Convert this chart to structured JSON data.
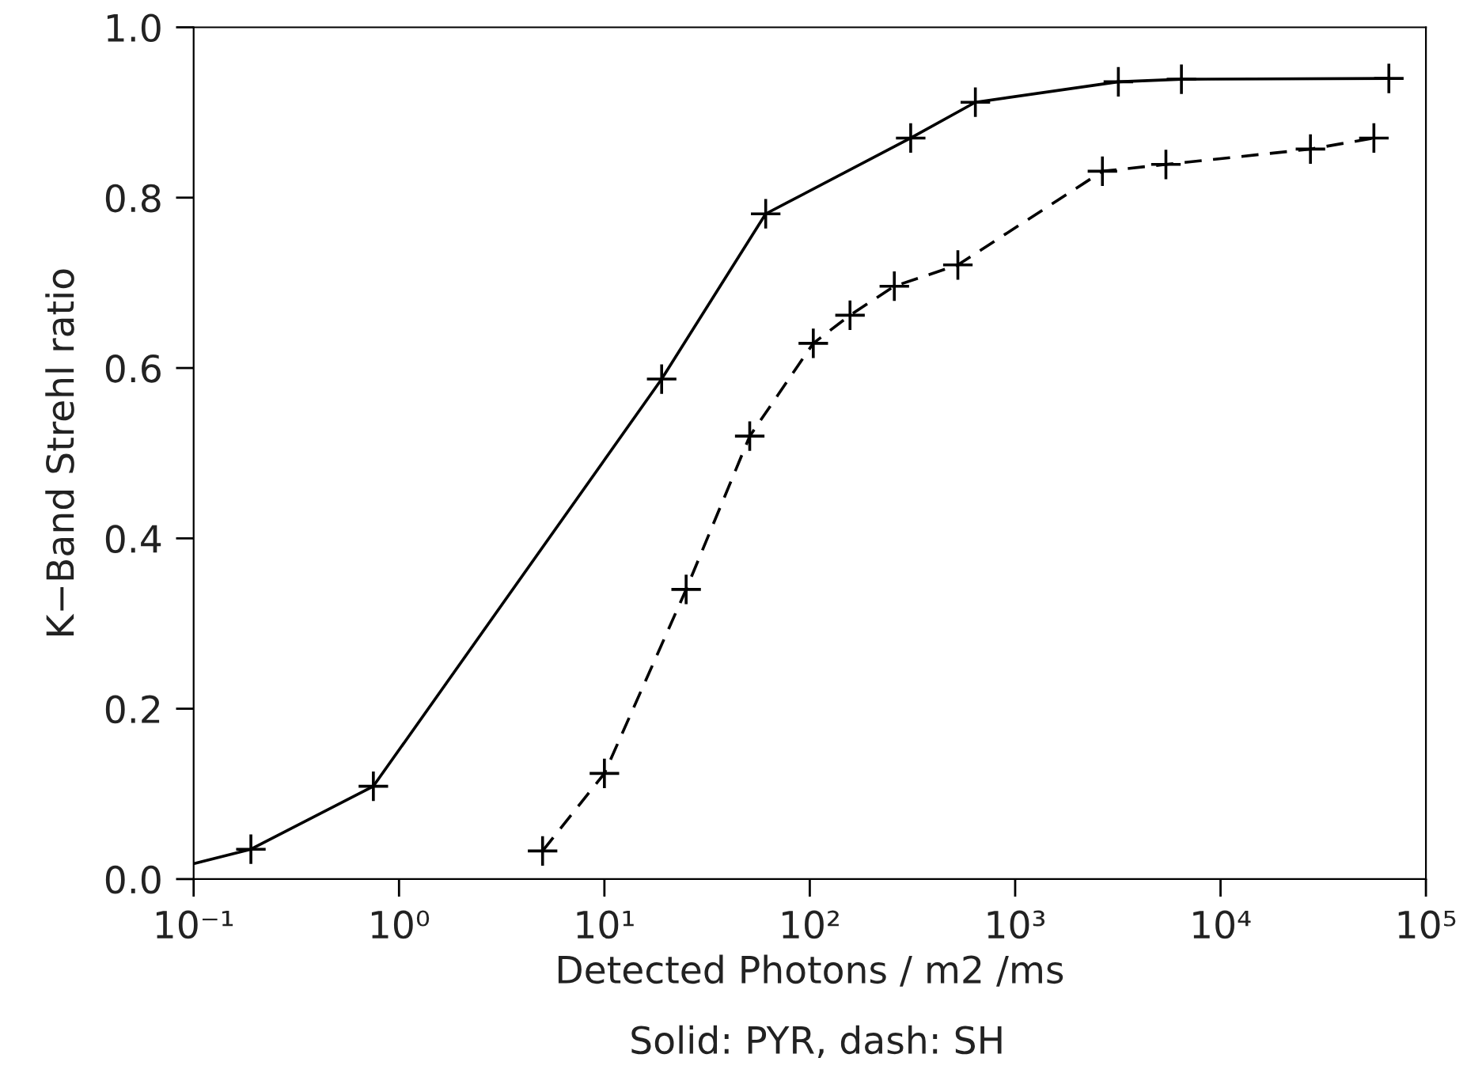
{
  "chart_data": {
    "type": "line",
    "xlabel": "Detected Photons / m2 /ms",
    "ylabel": "K−Band Strehl ratio",
    "annotations": [
      "Solid: PYR, dash: SH"
    ],
    "log": "x",
    "xlim": [
      0.1,
      100000
    ],
    "ylim": [
      0,
      1
    ],
    "xticks": [
      {
        "value": 0.1,
        "label": "10⁻¹"
      },
      {
        "value": 1,
        "label": "10⁰"
      },
      {
        "value": 10,
        "label": "10¹"
      },
      {
        "value": 100,
        "label": "10²"
      },
      {
        "value": 1000,
        "label": "10³"
      },
      {
        "value": 10000,
        "label": "10⁴"
      },
      {
        "value": 100000,
        "label": "10⁵"
      }
    ],
    "yticks": [
      {
        "value": 0,
        "label": "0.0"
      },
      0.2,
      0.4,
      0.6,
      0.8,
      {
        "value": 1,
        "label": "1.0"
      }
    ],
    "grid": false,
    "legend": false,
    "series": [
      {
        "color": "#000000",
        "line_style": "solid",
        "marker": "cross",
        "x": [
          0.1,
          0.19,
          0.75,
          19,
          61,
          310,
          640,
          3180,
          6450,
          66000
        ],
        "values": [
          0.018,
          0.035,
          0.109,
          0.587,
          0.781,
          0.87,
          0.912,
          0.936,
          0.939,
          0.94
        ]
      },
      {
        "color": "#000000",
        "line_style": "dashed",
        "marker": "cross",
        "x": [
          5,
          10,
          25,
          51,
          104,
          157,
          258,
          526,
          2660,
          5420,
          27400,
          55800
        ],
        "values": [
          0.033,
          0.124,
          0.34,
          0.52,
          0.629,
          0.662,
          0.696,
          0.721,
          0.831,
          0.839,
          0.857,
          0.87
        ]
      }
    ]
  }
}
